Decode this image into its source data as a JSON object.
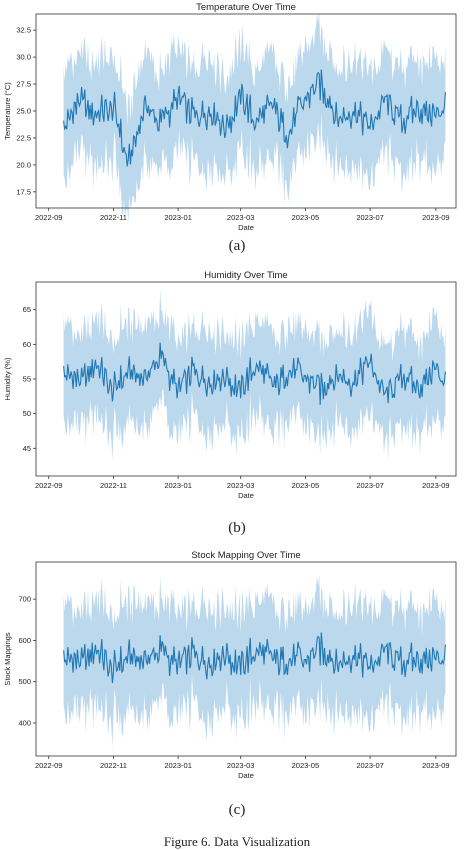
{
  "captions": [
    "(a)",
    "(b)",
    "(c)"
  ],
  "figure_caption": "Figure 6. Data Visualization",
  "chart_data": [
    {
      "type": "line",
      "title": "Temperature Over Time",
      "xlabel": "Date",
      "ylabel": "Temperature (°C)",
      "x_ticks": [
        "2022-09",
        "2022-11",
        "2023-01",
        "2023-03",
        "2023-05",
        "2023-07",
        "2023-09"
      ],
      "y_ticks": [
        17.5,
        20.0,
        22.5,
        25.0,
        27.5,
        30.0,
        32.5
      ],
      "xlim": [
        "2022-08-20",
        "2023-09-20"
      ],
      "ylim": [
        16.0,
        34.0
      ],
      "band_half_width": 4.5,
      "series": [
        {
          "color": "#1f77b4",
          "band_color": "#a6cbe6",
          "x": [
            "2022-09-15",
            "2022-10-01",
            "2022-10-15",
            "2022-11-01",
            "2022-11-15",
            "2022-12-01",
            "2022-12-15",
            "2023-01-01",
            "2023-01-15",
            "2023-02-01",
            "2023-02-15",
            "2023-03-01",
            "2023-03-15",
            "2023-04-01",
            "2023-04-15",
            "2023-05-01",
            "2023-05-15",
            "2023-06-01",
            "2023-06-15",
            "2023-07-01",
            "2023-07-15",
            "2023-08-01",
            "2023-08-15",
            "2023-09-01",
            "2023-09-10"
          ],
          "values": [
            23.5,
            26.0,
            24.5,
            25.5,
            20.0,
            25.5,
            24.0,
            26.0,
            24.5,
            25.0,
            23.5,
            26.5,
            24.0,
            25.5,
            23.0,
            26.0,
            27.5,
            24.5,
            25.0,
            23.5,
            26.0,
            24.0,
            25.5,
            24.5,
            26.0
          ]
        }
      ]
    },
    {
      "type": "line",
      "title": "Humidity Over Time",
      "xlabel": "Date",
      "ylabel": "Humidity (%)",
      "x_ticks": [
        "2022-09",
        "2022-11",
        "2023-01",
        "2023-03",
        "2023-05",
        "2023-07",
        "2023-09"
      ],
      "y_ticks": [
        45,
        50,
        55,
        60,
        65
      ],
      "xlim": [
        "2022-08-20",
        "2023-09-20"
      ],
      "ylim": [
        41,
        69
      ],
      "band_half_width": 6.5,
      "series": [
        {
          "color": "#1f77b4",
          "band_color": "#a6cbe6",
          "x": [
            "2022-09-15",
            "2022-10-01",
            "2022-10-15",
            "2022-11-01",
            "2022-11-15",
            "2022-12-01",
            "2022-12-15",
            "2023-01-01",
            "2023-01-15",
            "2023-02-01",
            "2023-02-15",
            "2023-03-01",
            "2023-03-15",
            "2023-04-01",
            "2023-04-15",
            "2023-05-01",
            "2023-05-15",
            "2023-06-01",
            "2023-06-15",
            "2023-07-01",
            "2023-07-15",
            "2023-08-01",
            "2023-08-15",
            "2023-09-01",
            "2023-09-10"
          ],
          "values": [
            56.0,
            54.5,
            57.0,
            53.5,
            56.0,
            55.0,
            58.5,
            53.0,
            56.0,
            54.5,
            55.5,
            53.5,
            57.0,
            54.0,
            56.5,
            55.0,
            53.5,
            56.0,
            54.5,
            57.5,
            52.5,
            55.5,
            54.0,
            56.5,
            55.0
          ]
        }
      ]
    },
    {
      "type": "line",
      "title": "Stock Mapping Over Time",
      "xlabel": "Date",
      "ylabel": "Stock Mappings",
      "x_ticks": [
        "2022-09",
        "2022-11",
        "2023-01",
        "2023-03",
        "2023-05",
        "2023-07",
        "2023-09"
      ],
      "y_ticks": [
        400,
        500,
        600,
        700
      ],
      "xlim": [
        "2022-08-20",
        "2023-09-20"
      ],
      "ylim": [
        320,
        790
      ],
      "band_half_width": 120,
      "series": [
        {
          "color": "#1f77b4",
          "band_color": "#a6cbe6",
          "x": [
            "2022-09-15",
            "2022-10-01",
            "2022-10-15",
            "2022-11-01",
            "2022-11-15",
            "2022-12-01",
            "2022-12-15",
            "2023-01-01",
            "2023-01-15",
            "2023-02-01",
            "2023-02-15",
            "2023-03-01",
            "2023-03-15",
            "2023-04-01",
            "2023-04-15",
            "2023-05-01",
            "2023-05-15",
            "2023-06-01",
            "2023-06-15",
            "2023-07-01",
            "2023-07-15",
            "2023-08-01",
            "2023-08-15",
            "2023-09-01",
            "2023-09-10"
          ],
          "values": [
            560,
            545,
            575,
            530,
            560,
            550,
            580,
            535,
            565,
            545,
            570,
            540,
            575,
            555,
            560,
            545,
            580,
            550,
            565,
            535,
            575,
            545,
            560,
            555,
            570
          ]
        }
      ]
    }
  ]
}
